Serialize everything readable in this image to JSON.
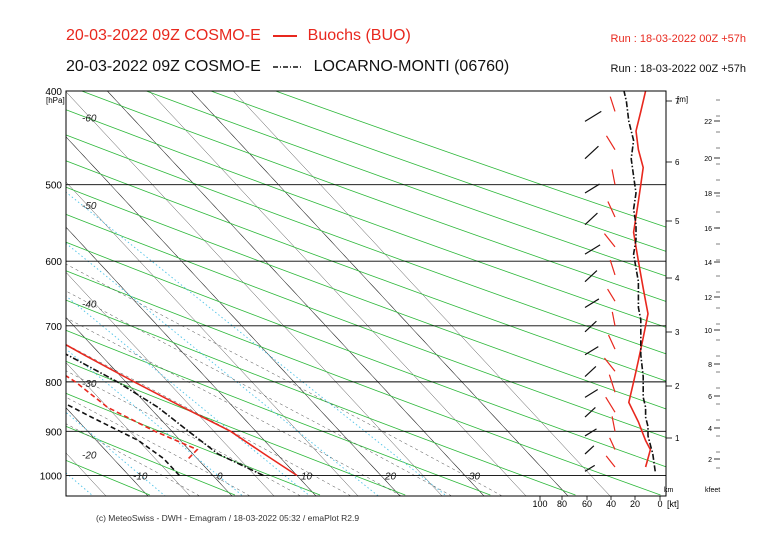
{
  "header": {
    "title_red": "20-03-2022 09Z COSMO-E",
    "legend_red": "Buochs (BUO)",
    "title_black": "20-03-2022 09Z COSMO-E",
    "legend_black": "LOCARNO-MONTI (06760)",
    "run_red": "Run : 18-03-2022 00Z +57h",
    "run_black": "Run : 18-03-2022 00Z +57h"
  },
  "footer": {
    "credit": "(c) MeteoSwiss - DWH - Emagram / 18-03-2022  05:32 / emaPlot R2.9"
  },
  "colors": {
    "station_red": "#e8281e",
    "station_black": "#111111",
    "dry_adiabat": "#2db83a",
    "mixing_ratio": "#4fc3e8",
    "isotherm": "#222222"
  },
  "chart_data": {
    "type": "line",
    "title": "20-03-2022 09Z COSMO-E",
    "y_axis": {
      "label": "[hPa]",
      "ticks": [
        400,
        500,
        600,
        700,
        800,
        900,
        1000
      ],
      "scale": "log",
      "range": [
        1050,
        400
      ]
    },
    "x_axis": {
      "label": "",
      "ticks": [
        -60,
        -50,
        -40,
        -30,
        -20,
        -10,
        0,
        10,
        20,
        30
      ],
      "range": [
        -55,
        40
      ]
    },
    "isotherm_labels": [
      "-60",
      "-50",
      "-40",
      "-30",
      "-20",
      "-10",
      "0",
      "10",
      "20",
      "30"
    ],
    "wind_axis": {
      "ticks": [
        "100",
        "80",
        "60",
        "40",
        "20",
        "0"
      ],
      "unit": "[kt]"
    },
    "height_km": {
      "label": "[m]",
      "ticks": [
        "1",
        "2",
        "3",
        "4",
        "5",
        "6",
        "7"
      ],
      "unit": "km"
    },
    "height_kfeet": {
      "ticks": [
        "2",
        "4",
        "6",
        "8",
        "10",
        "12",
        "14",
        "16",
        "18",
        "20",
        "22"
      ],
      "unit": "kfeet"
    },
    "series": [
      {
        "name": "Buochs (BUO)",
        "kind": "temperature",
        "color": "#e8281e",
        "dash": "solid",
        "points": [
          [
            1000,
            10
          ],
          [
            950,
            8.5
          ],
          [
            900,
            7
          ],
          [
            850,
            4
          ],
          [
            800,
            1
          ],
          [
            750,
            -2
          ],
          [
            700,
            -5
          ],
          [
            650,
            -8
          ],
          [
            600,
            -12
          ],
          [
            550,
            -17
          ],
          [
            500,
            -22
          ],
          [
            450,
            -28
          ],
          [
            400,
            -34
          ]
        ]
      },
      {
        "name": "Buochs (BUO)",
        "kind": "dewpoint",
        "color": "#e8281e",
        "dash": "dashed",
        "points": [
          [
            960,
            -1
          ],
          [
            940,
            1
          ],
          [
            900,
            -2
          ],
          [
            850,
            -5
          ],
          [
            800,
            -6
          ],
          [
            750,
            -8
          ],
          [
            700,
            -10
          ],
          [
            650,
            -13
          ],
          [
            620,
            -19
          ],
          [
            600,
            -28
          ],
          [
            580,
            -42
          ],
          [
            560,
            -47
          ],
          [
            540,
            -45
          ],
          [
            520,
            -40
          ],
          [
            500,
            -35
          ],
          [
            460,
            -32
          ],
          [
            430,
            -36
          ],
          [
            400,
            -42
          ]
        ]
      },
      {
        "name": "LOCARNO-MONTI (06760)",
        "kind": "temperature",
        "color": "#111111",
        "dash": "dashdot",
        "points": [
          [
            1000,
            6
          ],
          [
            950,
            3
          ],
          [
            900,
            2
          ],
          [
            850,
            1
          ],
          [
            800,
            -1
          ],
          [
            750,
            -4
          ],
          [
            700,
            -7
          ],
          [
            650,
            -9
          ],
          [
            600,
            -13
          ],
          [
            550,
            -18
          ],
          [
            500,
            -23
          ],
          [
            450,
            -29
          ],
          [
            400,
            -35
          ]
        ]
      },
      {
        "name": "LOCARNO-MONTI (06760)",
        "kind": "dewpoint",
        "color": "#111111",
        "dash": "dashed",
        "points": [
          [
            1000,
            -4
          ],
          [
            960,
            -4
          ],
          [
            920,
            -5
          ],
          [
            870,
            -8
          ],
          [
            820,
            -11
          ],
          [
            780,
            -13
          ],
          [
            750,
            -12
          ],
          [
            700,
            -13
          ],
          [
            650,
            -14
          ],
          [
            600,
            -18
          ],
          [
            570,
            -26
          ],
          [
            540,
            -35
          ],
          [
            520,
            -40
          ],
          [
            500,
            -42
          ],
          [
            460,
            -42
          ],
          [
            430,
            -40
          ],
          [
            400,
            -41
          ]
        ]
      }
    ],
    "wind_profiles": [
      {
        "name": "Buochs (BUO)",
        "color": "#e8281e",
        "points": [
          [
            980,
            12
          ],
          [
            960,
            10
          ],
          [
            940,
            8
          ],
          [
            920,
            12
          ],
          [
            900,
            15
          ],
          [
            880,
            18
          ],
          [
            860,
            22
          ],
          [
            840,
            26
          ],
          [
            820,
            24
          ],
          [
            800,
            22
          ],
          [
            780,
            20
          ],
          [
            760,
            18
          ],
          [
            740,
            16
          ],
          [
            720,
            14
          ],
          [
            700,
            12
          ],
          [
            680,
            10
          ],
          [
            660,
            12
          ],
          [
            640,
            14
          ],
          [
            620,
            16
          ],
          [
            600,
            18
          ],
          [
            580,
            20
          ],
          [
            560,
            22
          ],
          [
            540,
            20
          ],
          [
            520,
            18
          ],
          [
            500,
            16
          ],
          [
            480,
            14
          ],
          [
            460,
            18
          ],
          [
            440,
            20
          ],
          [
            420,
            16
          ],
          [
            400,
            12
          ]
        ]
      },
      {
        "name": "LOCARNO-MONTI (06760)",
        "color": "#111111",
        "points": [
          [
            990,
            4
          ],
          [
            970,
            5
          ],
          [
            950,
            6
          ],
          [
            930,
            8
          ],
          [
            910,
            10
          ],
          [
            890,
            10
          ],
          [
            870,
            12
          ],
          [
            850,
            12
          ],
          [
            830,
            14
          ],
          [
            810,
            14
          ],
          [
            790,
            14
          ],
          [
            770,
            15
          ],
          [
            750,
            16
          ],
          [
            730,
            16
          ],
          [
            710,
            16
          ],
          [
            690,
            16
          ],
          [
            670,
            18
          ],
          [
            650,
            18
          ],
          [
            630,
            18
          ],
          [
            610,
            20
          ],
          [
            590,
            22
          ],
          [
            570,
            20
          ],
          [
            550,
            20
          ],
          [
            530,
            22
          ],
          [
            510,
            20
          ],
          [
            490,
            22
          ],
          [
            470,
            24
          ],
          [
            450,
            22
          ],
          [
            430,
            26
          ],
          [
            410,
            28
          ],
          [
            400,
            30
          ]
        ]
      }
    ]
  }
}
